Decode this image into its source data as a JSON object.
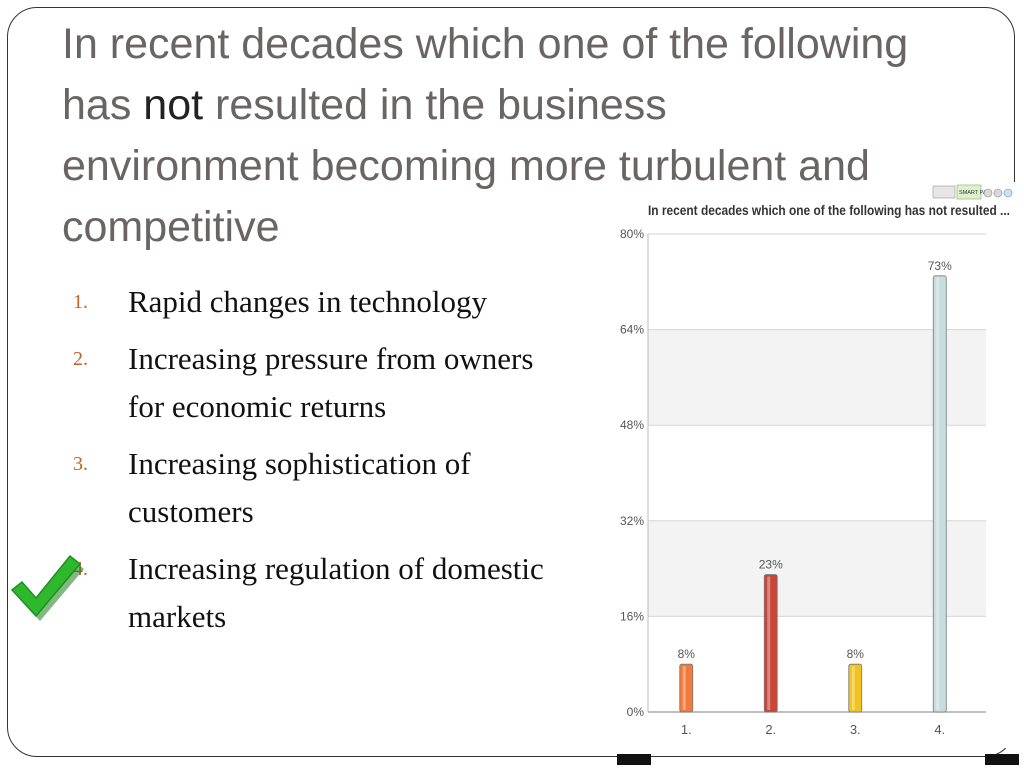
{
  "slide": {
    "title_part1": "In recent decades which one of the following has ",
    "title_emphasis": "not",
    "title_part2": " resulted in the business environment becoming more turbulent and competitive",
    "options": [
      {
        "number": "1.",
        "text": "Rapid changes in technology"
      },
      {
        "number": "2.",
        "text": "Increasing pressure from owners for economic returns"
      },
      {
        "number": "3.",
        "text": "Increasing sophistication of customers"
      },
      {
        "number": "4.",
        "text": "Increasing regulation of domestic markets"
      }
    ],
    "correct_option": "4.",
    "check_icon": "check-mark-icon",
    "colors": {
      "title": "#6a6464",
      "option_number": "#c0622c",
      "check": "#2eb82e"
    }
  },
  "chart_data": {
    "type": "bar",
    "title": "In recent decades which one of the following has not resulted ...",
    "categories": [
      "1.",
      "2.",
      "3.",
      "4."
    ],
    "values": [
      8,
      23,
      8,
      73
    ],
    "data_labels": [
      "8%",
      "23%",
      "8%",
      "73%"
    ],
    "ylim": [
      0,
      80
    ],
    "yticks": [
      0,
      16,
      32,
      48,
      64,
      80
    ],
    "ytick_labels": [
      "0%",
      "16%",
      "32%",
      "48%",
      "64%",
      "80%"
    ],
    "xlabel": "",
    "ylabel": "",
    "grid": true,
    "bar_colors": [
      "#f07a3e",
      "#c9463a",
      "#f2c21f",
      "#c8dede"
    ],
    "toolbar_label": "SMART PA"
  }
}
